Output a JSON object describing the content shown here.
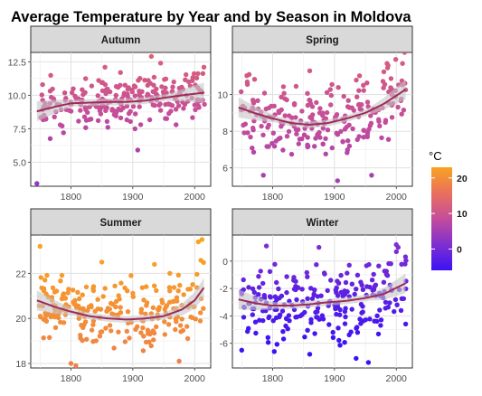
{
  "chart_data": {
    "type": "scatter",
    "title": "Average Temperature by Year and by Season in Moldova",
    "legend": {
      "title": "°C",
      "position": "right",
      "ticks": [
        20,
        10,
        0
      ],
      "range": [
        -6,
        23
      ],
      "colors": [
        "#3b12f5",
        "#7f2fcf",
        "#c44d9b",
        "#e9705e",
        "#f9a321"
      ]
    },
    "x_ticks": [
      1800,
      1900,
      2000
    ],
    "grid": true,
    "smoother": {
      "line_color": "#9e2a5a",
      "band_color": "#c7c7c7"
    },
    "panels": [
      {
        "strip": "Autumn",
        "ylim": [
          3.2,
          13.2
        ],
        "y_ticks": [
          "5.0",
          "7.5",
          "10.0",
          "12.5"
        ],
        "y_tick_values": [
          5,
          7.5,
          10,
          12.5
        ],
        "smooth": [
          [
            1745,
            8.8
          ],
          [
            1775,
            9.15
          ],
          [
            1800,
            9.4
          ],
          [
            1830,
            9.45
          ],
          [
            1860,
            9.5
          ],
          [
            1890,
            9.5
          ],
          [
            1920,
            9.6
          ],
          [
            1950,
            9.8
          ],
          [
            1980,
            10.0
          ],
          [
            2016,
            10.2
          ]
        ],
        "outliers": [
          [
            1745,
            3.4
          ],
          [
            1908,
            5.9
          ],
          [
            1788,
            7.2
          ],
          [
            1930,
            12.9
          ],
          [
            1945,
            12.4
          ],
          [
            2015,
            12.1
          ],
          [
            1855,
            12.1
          ],
          [
            1880,
            11.7
          ]
        ],
        "n_random": 235,
        "spread": 0.85,
        "seed": 11
      },
      {
        "strip": "Spring",
        "ylim": [
          5.0,
          12.3
        ],
        "y_ticks": [
          "6",
          "8",
          "10"
        ],
        "y_tick_values": [
          6,
          8,
          10
        ],
        "smooth": [
          [
            1745,
            9.3
          ],
          [
            1770,
            9.0
          ],
          [
            1800,
            8.7
          ],
          [
            1830,
            8.45
          ],
          [
            1860,
            8.35
          ],
          [
            1890,
            8.45
          ],
          [
            1920,
            8.7
          ],
          [
            1950,
            9.0
          ],
          [
            1980,
            9.5
          ],
          [
            2016,
            10.3
          ]
        ],
        "outliers": [
          [
            1785,
            5.6
          ],
          [
            1905,
            5.3
          ],
          [
            1960,
            5.6
          ],
          [
            1762,
            11.1
          ],
          [
            1985,
            11.7
          ],
          [
            2010,
            11.7
          ],
          [
            1860,
            11.3
          ]
        ],
        "n_random": 235,
        "spread": 0.95,
        "seed": 23
      },
      {
        "strip": "Summer",
        "ylim": [
          17.8,
          23.7
        ],
        "y_ticks": [
          "18",
          "20",
          "22"
        ],
        "y_tick_values": [
          18,
          20,
          22
        ],
        "smooth": [
          [
            1745,
            20.8
          ],
          [
            1775,
            20.5
          ],
          [
            1800,
            20.3
          ],
          [
            1830,
            20.1
          ],
          [
            1860,
            20.0
          ],
          [
            1890,
            19.95
          ],
          [
            1920,
            20.0
          ],
          [
            1950,
            20.1
          ],
          [
            1980,
            20.4
          ],
          [
            2000,
            20.8
          ],
          [
            2016,
            21.4
          ]
        ],
        "outliers": [
          [
            1750,
            23.2
          ],
          [
            1800,
            18.0
          ],
          [
            1808,
            17.9
          ],
          [
            1975,
            18.1
          ],
          [
            2012,
            23.5
          ],
          [
            2006,
            23.4
          ],
          [
            1850,
            22.5
          ],
          [
            1935,
            22.4
          ]
        ],
        "n_random": 235,
        "spread": 0.7,
        "seed": 37
      },
      {
        "strip": "Winter",
        "ylim": [
          -7.8,
          1.9
        ],
        "y_ticks": [
          "0",
          "-2",
          "-4",
          "-6"
        ],
        "y_tick_values": [
          0,
          -2,
          -4,
          -6
        ],
        "smooth": [
          [
            1745,
            -2.8
          ],
          [
            1775,
            -3.1
          ],
          [
            1800,
            -3.25
          ],
          [
            1830,
            -3.25
          ],
          [
            1860,
            -3.15
          ],
          [
            1890,
            -3.0
          ],
          [
            1920,
            -2.9
          ],
          [
            1950,
            -2.7
          ],
          [
            1980,
            -2.4
          ],
          [
            2016,
            -1.6
          ]
        ],
        "outliers": [
          [
            1875,
            1.0
          ],
          [
            2000,
            1.2
          ],
          [
            2003,
            1.0
          ],
          [
            1790,
            1.1
          ],
          [
            1955,
            -7.4
          ],
          [
            1935,
            -7.1
          ],
          [
            1860,
            -6.8
          ],
          [
            1750,
            -6.5
          ]
        ],
        "n_random": 235,
        "spread": 1.4,
        "seed": 53
      }
    ]
  }
}
